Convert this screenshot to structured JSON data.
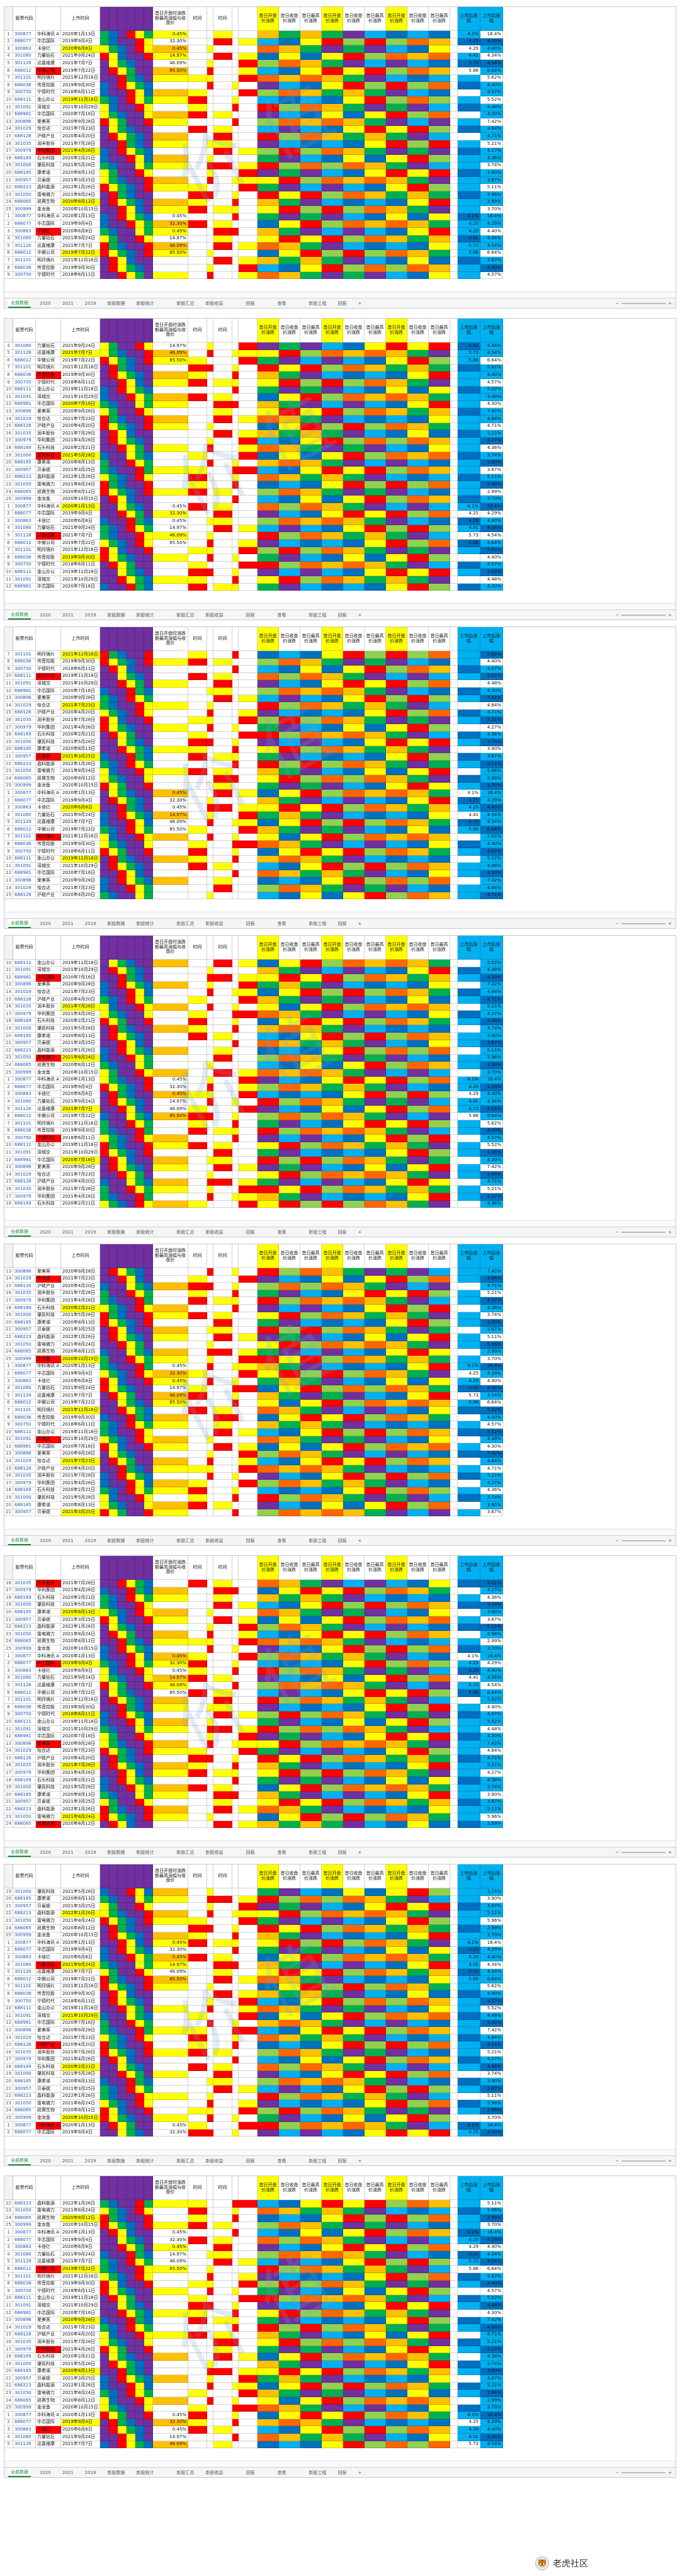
{
  "header": {
    "columns": [
      "",
      "股票代码",
      "",
      "上市时间",
      "",
      "",
      "",
      "",
      "",
      "",
      "首日开盘时涨跌额最高涨幅与收盘价",
      "时间",
      "",
      "时间",
      "",
      "",
      "首日开盘价涨跌",
      "首日收盘价涨跌",
      "首日最高价涨跌",
      "首日开盘价涨跌",
      "首日收盘价涨跌",
      "首日最高价涨跌",
      "首日开盘价涨跌",
      "首日收盘价涨跌",
      "首日最高价涨跌",
      "",
      "上市后涨幅",
      "上市后涨幅"
    ]
  },
  "sheet_tabs": [
    "全部数据",
    "2020",
    "2021",
    "2019",
    "新股数据",
    "新股统计",
    "",
    "新股汇总",
    "新股收益",
    "",
    "回报",
    "",
    "查看",
    "",
    "新股工程",
    "回报",
    "+"
  ],
  "footer": {
    "logo_text": "老虎社区",
    "sub_text": ""
  },
  "watermark_text": "价值",
  "panels": [
    {
      "id": 1,
      "rows": [
        [
          "1",
          "300877",
          "中科海讯 A",
          "2020年1月13日",
          "",
          "",
          "",
          "",
          "",
          "",
          "0.45%",
          "",
          "",
          "",
          "",
          "",
          "",
          "",
          "",
          "",
          "",
          "",
          "",
          "",
          "",
          "",
          "4.1%",
          "16.4%"
        ],
        [
          "2",
          "688077",
          "中芯国际",
          "2019年9月4日",
          "",
          "",
          "",
          "",
          "",
          "",
          "32.30%",
          "",
          "",
          "",
          "",
          "",
          "",
          "",
          "",
          "",
          "",
          "",
          "",
          "",
          "",
          "",
          "4.25",
          "4.29%"
        ],
        [
          "3",
          "300863",
          "卡倍亿",
          "2020年6月8日",
          "",
          "",
          "",
          "",
          "",
          "",
          "0.45%",
          "",
          "",
          "",
          "",
          "",
          "",
          "",
          "",
          "",
          "",
          "",
          "",
          "",
          "",
          "",
          "4.29",
          "4.40%"
        ],
        [
          "4",
          "301080",
          "力量钻石",
          "2021年9月24日",
          "",
          "",
          "",
          "",
          "",
          "",
          "14.97%",
          "",
          "",
          "",
          "",
          "",
          "",
          "",
          "",
          "",
          "",
          "",
          "",
          "",
          "",
          "",
          "4.41",
          "4.34%"
        ],
        [
          "5",
          "301126",
          "达嘉维康",
          "2021年7月7日",
          "",
          "",
          "",
          "",
          "",
          "",
          "46.09%",
          "",
          "",
          "",
          "",
          "",
          "",
          "",
          "",
          "",
          "",
          "",
          "",
          "",
          "",
          "",
          "5.73",
          "4.54%"
        ],
        [
          "6",
          "688012",
          "中微公司",
          "2019年7月22日",
          "",
          "",
          "",
          "",
          "",
          "",
          "85.50%",
          "",
          "",
          "",
          "",
          "",
          "",
          "",
          "",
          "",
          "",
          "",
          "",
          "",
          "",
          "",
          "5.86",
          "6.64%"
        ],
        [
          "7",
          "301101",
          "明月镜片",
          "2021年12月16日",
          "",
          "",
          "",
          "",
          "",
          "",
          "",
          "",
          "",
          "",
          "",
          "",
          "",
          "",
          "",
          "",
          "",
          "",
          "",
          "",
          "",
          "",
          "",
          "5.62%"
        ],
        [
          "8",
          "688036",
          "传音控股",
          "2019年9月30日",
          "",
          "",
          "",
          "",
          "",
          "",
          "",
          "",
          "",
          "",
          "",
          "",
          "",
          "",
          "",
          "",
          "",
          "",
          "",
          "",
          "",
          "",
          "",
          "4.40%"
        ],
        [
          "9",
          "300750",
          "宁德时代",
          "2018年6月11日",
          "",
          "",
          "",
          "",
          "",
          "",
          "",
          "",
          "",
          "",
          "",
          "",
          "",
          "",
          "",
          "",
          "",
          "",
          "",
          "",
          "",
          "",
          "",
          "4.57%"
        ],
        [
          "10",
          "688111",
          "金山办公",
          "2019年11月18日",
          "",
          "",
          "",
          "",
          "",
          "",
          "",
          "",
          "",
          "",
          "",
          "",
          "",
          "",
          "",
          "",
          "",
          "",
          "",
          "",
          "",
          "",
          "",
          "5.52%"
        ],
        [
          "11",
          "301091",
          "深城交",
          "2021年10月29日",
          "",
          "",
          "",
          "",
          "",
          "",
          "",
          "",
          "",
          "",
          "",
          "",
          "",
          "",
          "",
          "",
          "",
          "",
          "",
          "",
          "",
          "",
          "",
          "4.48%"
        ],
        [
          "12",
          "688981",
          "中芯国际",
          "2020年7月16日",
          "",
          "",
          "",
          "",
          "",
          "",
          "",
          "",
          "",
          "",
          "",
          "",
          "",
          "",
          "",
          "",
          "",
          "",
          "",
          "",
          "",
          "",
          "",
          "4.30%"
        ],
        [
          "13",
          "300896",
          "爱美客",
          "2020年9月28日",
          "",
          "",
          "",
          "",
          "",
          "",
          "",
          "",
          "",
          "",
          "",
          "",
          "",
          "",
          "",
          "",
          "",
          "",
          "",
          "",
          "",
          "",
          "",
          "7.42%"
        ],
        [
          "14",
          "301029",
          "怡合达",
          "2021年7月23日",
          "",
          "",
          "",
          "",
          "",
          "",
          "",
          "",
          "",
          "",
          "",
          "",
          "",
          "",
          "",
          "",
          "",
          "",
          "",
          "",
          "",
          "",
          "",
          "4.84%"
        ],
        [
          "15",
          "688126",
          "沪硅产业",
          "2020年4月20日",
          "",
          "",
          "",
          "",
          "",
          "",
          "",
          "",
          "",
          "",
          "",
          "",
          "",
          "",
          "",
          "",
          "",
          "",
          "",
          "",
          "",
          "",
          "",
          "4.71%"
        ],
        [
          "16",
          "301035",
          "润丰股份",
          "2021年7月28日",
          "",
          "",
          "",
          "",
          "",
          "",
          "",
          "",
          "",
          "",
          "",
          "",
          "",
          "",
          "",
          "",
          "",
          "",
          "",
          "",
          "",
          "",
          "",
          "5.21%"
        ],
        [
          "17",
          "300979",
          "华利集团",
          "2021年4月26日",
          "",
          "",
          "",
          "",
          "",
          "",
          "",
          "",
          "",
          "",
          "",
          "",
          "",
          "",
          "",
          "",
          "",
          "",
          "",
          "",
          "",
          "",
          "",
          "4.27%"
        ],
        [
          "18",
          "688169",
          "石头科技",
          "2020年2月21日",
          "",
          "",
          "",
          "",
          "",
          "",
          "",
          "",
          "",
          "",
          "",
          "",
          "",
          "",
          "",
          "",
          "",
          "",
          "",
          "",
          "",
          "",
          "",
          "4.36%"
        ],
        [
          "19",
          "301000",
          "肇民科技",
          "2021年5月28日",
          "",
          "",
          "",
          "",
          "",
          "",
          "",
          "",
          "",
          "",
          "",
          "",
          "",
          "",
          "",
          "",
          "",
          "",
          "",
          "",
          "",
          "",
          "",
          "3.74%"
        ],
        [
          "20",
          "688185",
          "康希诺",
          "2020年8月13日",
          "",
          "",
          "",
          "",
          "",
          "",
          "",
          "",
          "",
          "",
          "",
          "",
          "",
          "",
          "",
          "",
          "",
          "",
          "",
          "",
          "",
          "",
          "",
          "3.90%"
        ],
        [
          "21",
          "300957",
          "贝泰妮",
          "2021年3月25日",
          "",
          "",
          "",
          "",
          "",
          "",
          "",
          "",
          "",
          "",
          "",
          "",
          "",
          "",
          "",
          "",
          "",
          "",
          "",
          "",
          "",
          "",
          "",
          "3.67%"
        ],
        [
          "22",
          "688223",
          "晶科能源",
          "2022年1月26日",
          "",
          "",
          "",
          "",
          "",
          "",
          "",
          "",
          "",
          "",
          "",
          "",
          "",
          "",
          "",
          "",
          "",
          "",
          "",
          "",
          "",
          "",
          "",
          "5.11%"
        ],
        [
          "23",
          "301050",
          "雷电微力",
          "2021年8月24日",
          "",
          "",
          "",
          "",
          "",
          "",
          "",
          "",
          "",
          "",
          "",
          "",
          "",
          "",
          "",
          "",
          "",
          "",
          "",
          "",
          "",
          "",
          "",
          "5.96%"
        ],
        [
          "24",
          "688065",
          "凯赛生物",
          "2020年8月12日",
          "",
          "",
          "",
          "",
          "",
          "",
          "",
          "",
          "",
          "",
          "",
          "",
          "",
          "",
          "",
          "",
          "",
          "",
          "",
          "",
          "",
          "",
          "",
          "2.99%"
        ],
        [
          "25",
          "300999",
          "金龙鱼",
          "2020年10月15日",
          "",
          "",
          "",
          "",
          "",
          "",
          "",
          "",
          "",
          "",
          "",
          "",
          "",
          "",
          "",
          "",
          "",
          "",
          "",
          "",
          "",
          "",
          "",
          "3.70%"
        ]
      ]
    }
  ]
}
